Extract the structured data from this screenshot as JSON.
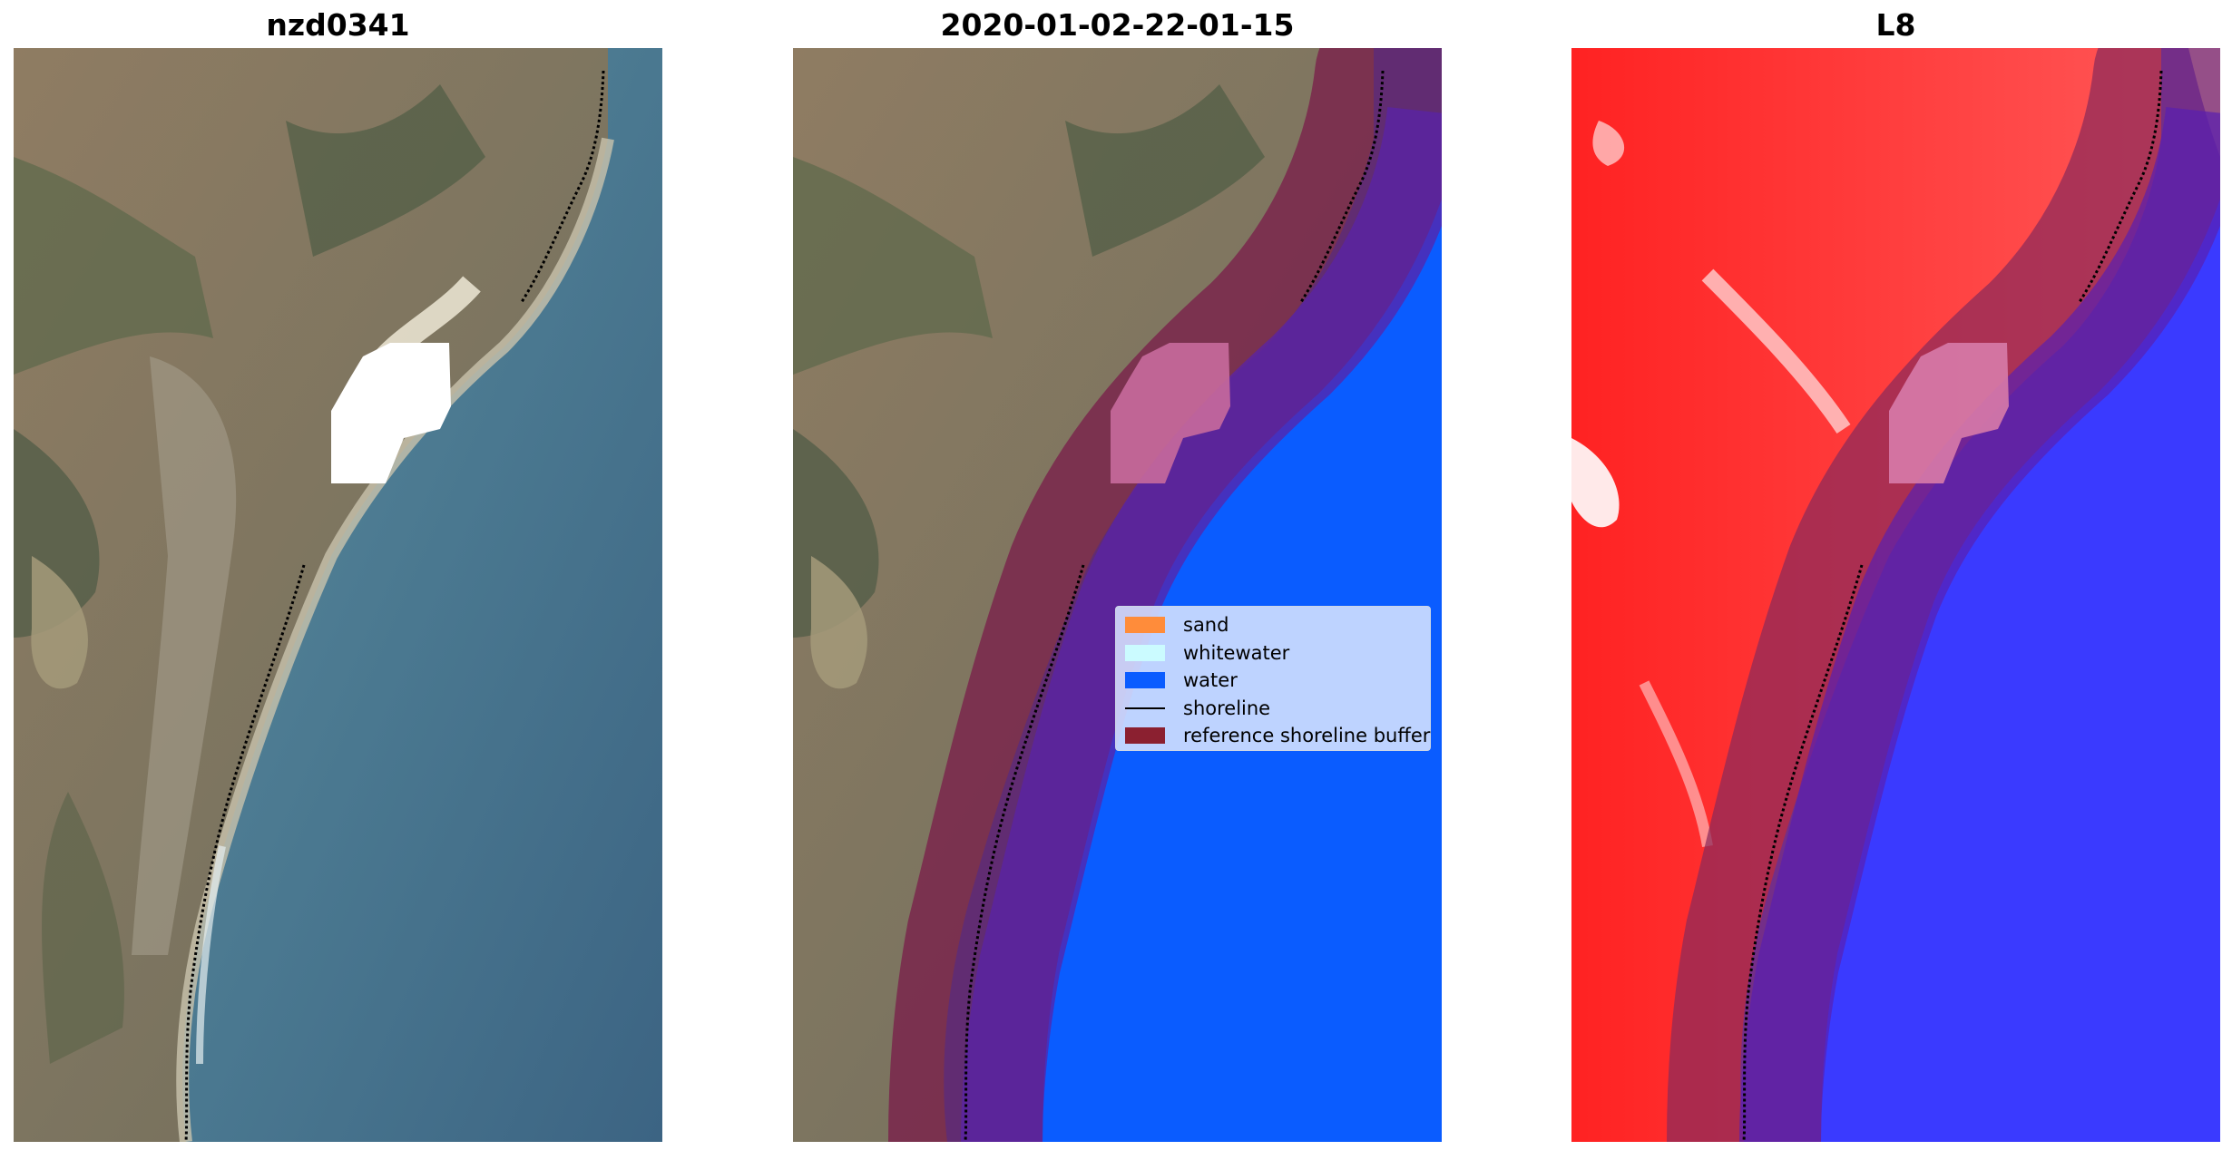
{
  "panels": [
    {
      "title": "nzd0341"
    },
    {
      "title": "2020-01-02-22-01-15"
    },
    {
      "title": "L8"
    }
  ],
  "legend": {
    "items": [
      {
        "label": "sand",
        "color": "#ff8c3a"
      },
      {
        "label": "whitewater",
        "color": "#cbfbff"
      },
      {
        "label": "water",
        "color": "#0a5cff"
      },
      {
        "label": "shoreline",
        "color": "#000000"
      },
      {
        "label": "reference shoreline buffer",
        "color": "#8b2030"
      }
    ]
  },
  "colors": {
    "land": "#8a7a63",
    "sea": "#3f6b85",
    "water_class": "#0a5cff",
    "buffer": "#8b2030",
    "l8_land": "#ff1a1a",
    "l8_water": "#2a2aff"
  }
}
